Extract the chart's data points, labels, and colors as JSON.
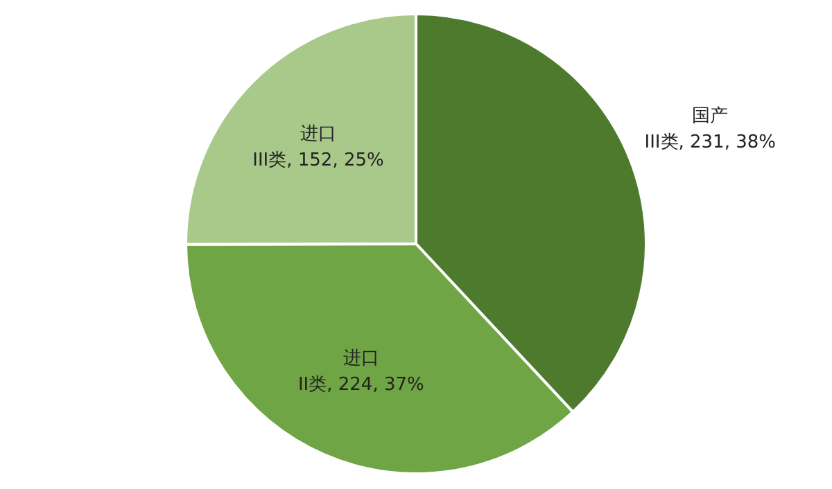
{
  "chart_data": {
    "type": "pie",
    "categories": [
      "国产\nIII类",
      "进口\nII类",
      "进口\nIII类"
    ],
    "values": [
      231,
      224,
      152
    ],
    "value_labels": [
      "231, 38%",
      "224, 37%",
      "152, 25%"
    ],
    "colors": [
      "#4e7a2e",
      "#6fa544",
      "#a9c98a"
    ]
  }
}
